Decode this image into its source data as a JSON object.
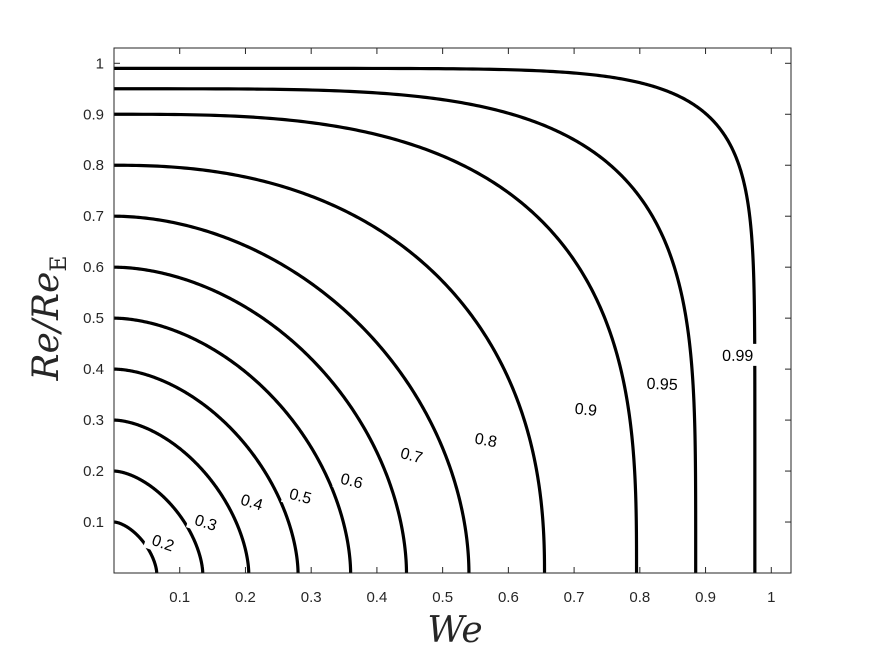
{
  "chart_data": {
    "type": "contour",
    "xlabel": "We",
    "ylabel": {
      "main": "Re/Re",
      "subscript": "E"
    },
    "xlim": [
      0,
      1.03
    ],
    "ylim": [
      0,
      1.03
    ],
    "xticks": [
      "0.1",
      "0.2",
      "0.3",
      "0.4",
      "0.5",
      "0.6",
      "0.7",
      "0.8",
      "0.9",
      "1"
    ],
    "yticks": [
      "0.1",
      "0.2",
      "0.3",
      "0.4",
      "0.5",
      "0.6",
      "0.7",
      "0.8",
      "0.9",
      "1"
    ],
    "grid": false,
    "line_color": "#000000",
    "levels": [
      {
        "level": 0.1,
        "label": "",
        "x_intercept": 0.065,
        "y_intercept": 0.1
      },
      {
        "level": 0.2,
        "label": "0.2",
        "x_intercept": 0.135,
        "y_intercept": 0.2
      },
      {
        "level": 0.3,
        "label": "0.3",
        "x_intercept": 0.205,
        "y_intercept": 0.3
      },
      {
        "level": 0.4,
        "label": "0.4",
        "x_intercept": 0.28,
        "y_intercept": 0.4
      },
      {
        "level": 0.5,
        "label": "0.5",
        "x_intercept": 0.36,
        "y_intercept": 0.5
      },
      {
        "level": 0.6,
        "label": "0.6",
        "x_intercept": 0.445,
        "y_intercept": 0.6
      },
      {
        "level": 0.7,
        "label": "0.7",
        "x_intercept": 0.54,
        "y_intercept": 0.7
      },
      {
        "level": 0.8,
        "label": "0.8",
        "x_intercept": 0.655,
        "y_intercept": 0.8
      },
      {
        "level": 0.9,
        "label": "0.9",
        "x_intercept": 0.795,
        "y_intercept": 0.9
      },
      {
        "level": 0.95,
        "label": "0.95",
        "x_intercept": 0.885,
        "y_intercept": 0.95
      },
      {
        "level": 0.99,
        "label": "0.99",
        "x_intercept": 0.975,
        "y_intercept": 0.99
      }
    ]
  }
}
